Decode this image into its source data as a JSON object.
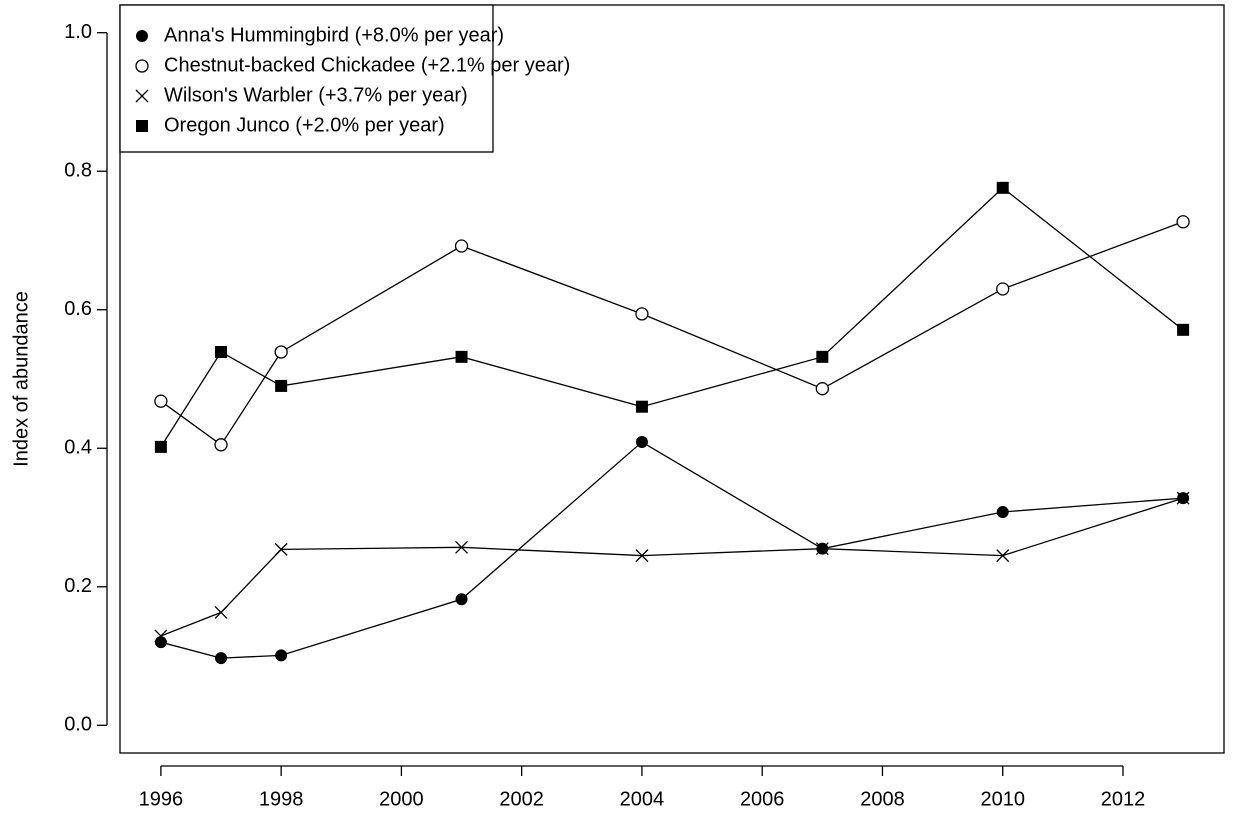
{
  "chart_data": {
    "type": "line",
    "ylabel": "Index of abundance",
    "x": [
      1996,
      1997,
      1998,
      2001,
      2004,
      2007,
      2010,
      2013
    ],
    "xlim": [
      1995.32,
      2013.68
    ],
    "xticks": [
      1996,
      1998,
      2000,
      2002,
      2004,
      2006,
      2008,
      2010,
      2012
    ],
    "ylim": [
      -0.04,
      1.04
    ],
    "yticks": [
      {
        "value": 0,
        "label": "0.0"
      },
      0.2,
      0.4,
      0.6,
      0.8,
      {
        "value": 1,
        "label": "1.0"
      }
    ],
    "legend": "top-left",
    "series": [
      {
        "name": "Anna's Hummingbird (+8.0% per year)",
        "color": "#000000",
        "marker": "filled-circle",
        "values": [
          0.12,
          0.097,
          0.101,
          0.182,
          0.409,
          0.255,
          0.308,
          0.328
        ]
      },
      {
        "name": "Chestnut-backed Chickadee (+2.1% per year)",
        "color": "#000000",
        "marker": "open-circle",
        "values": [
          0.468,
          0.405,
          0.539,
          0.692,
          0.594,
          0.486,
          0.63,
          0.727
        ]
      },
      {
        "name": "Wilson's Warbler (+3.7% per year)",
        "color": "#000000",
        "marker": "cross",
        "values": [
          0.129,
          0.163,
          0.254,
          0.257,
          0.245,
          0.255,
          0.245,
          0.328
        ]
      },
      {
        "name": "Oregon Junco (+2.0% per year)",
        "color": "#000000",
        "marker": "filled-square",
        "values": [
          0.402,
          0.539,
          0.49,
          0.532,
          0.46,
          0.532,
          0.776,
          0.571
        ]
      }
    ]
  }
}
